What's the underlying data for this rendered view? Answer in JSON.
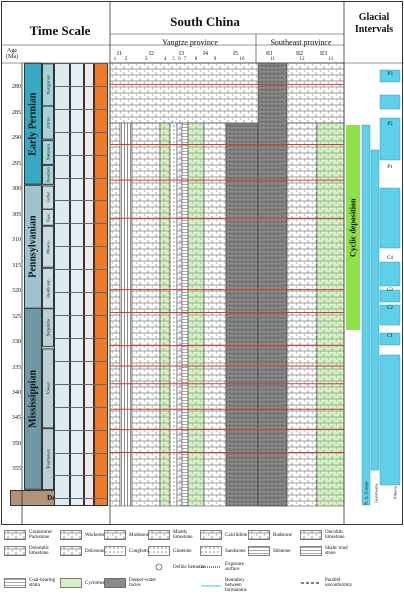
{
  "headers": {
    "time_scale": "Time Scale",
    "south_china": "South China",
    "glacial_intervals": "Glacial Intervals",
    "age": "Age\n(Ma)",
    "yangtze": "Yangtze province",
    "southeast": "Southeast province"
  },
  "region_codes": [
    "I1",
    "I2",
    "I3",
    "I4",
    "I5",
    "II1",
    "II2",
    "II3"
  ],
  "column_numbers": [
    "1",
    "2",
    "3",
    "4",
    "5",
    "6",
    "7",
    "8",
    "9",
    "10",
    "11",
    "12",
    "13"
  ],
  "periods": [
    {
      "label": "Early Permian",
      "color": "#37a9c4"
    },
    {
      "label": "Pennsylvanian",
      "color": "#9fc4cf"
    },
    {
      "label": "Mississippian",
      "color": "#6e98a3"
    },
    {
      "label": "Dev",
      "color": "#b0937a"
    }
  ],
  "stages_eu": [
    "Kungurian",
    "Artins.",
    "Sakmara",
    "Asselian",
    "Gzhel",
    "Kasi.",
    "Mosco.",
    "Bashkiran",
    "Serpukho",
    "Visean",
    "Tournasian"
  ],
  "age_ticks": [
    "280",
    "285",
    "290",
    "295",
    "300",
    "305",
    "310",
    "315",
    "320",
    "325",
    "330",
    "335",
    "340",
    "345",
    "350",
    "355",
    "360"
  ],
  "gi_labels": [
    "Cyclic deposition"
  ],
  "glacial_labels": [
    "P3",
    "P2",
    "P1",
    "C4",
    "C3",
    "C2",
    "C1"
  ],
  "glacial_col_labels": [
    "N. A. Europe",
    "Gondwana",
    "Siberia"
  ],
  "legend": [
    {
      "label": "Grainstone/ Packstone",
      "pattern": "grain"
    },
    {
      "label": "Wackestone",
      "pattern": "wacke"
    },
    {
      "label": "Mudstone",
      "pattern": "mud"
    },
    {
      "label": "Muddy limestone",
      "pattern": "muddy"
    },
    {
      "label": "Calcilithite",
      "pattern": "calci"
    },
    {
      "label": "Rudstone",
      "pattern": "rud"
    },
    {
      "label": "Oncolitic limestone",
      "pattern": "onco"
    },
    {
      "label": "Dolomitic limestone",
      "pattern": "dolo_lime"
    },
    {
      "label": "Dolostone",
      "pattern": "dolo"
    },
    {
      "label": "Conglomerate",
      "pattern": "cong"
    },
    {
      "label": "Glutenite",
      "pattern": "glut"
    },
    {
      "label": "Sandstone",
      "pattern": "sand"
    },
    {
      "label": "Siltstone",
      "pattern": "silt"
    },
    {
      "label": "Shale/ mud stone",
      "pattern": "shale"
    },
    {
      "label": "Oolitic hematite",
      "pattern": "ool"
    },
    {
      "label": "Exposure surface",
      "pattern": "exposure"
    },
    {
      "label": "Coal-bearing strata",
      "pattern": "coal"
    },
    {
      "label": "Cyclothems",
      "pattern": "cyclo"
    },
    {
      "label": "Deeper-water facies",
      "pattern": "deep"
    },
    {
      "label": "Boundary between formations",
      "pattern": "boundary"
    },
    {
      "label": "Parallel unconformity",
      "pattern": "unconf"
    }
  ],
  "colors": {
    "green_cycle": "#8ee04a",
    "cyan_glacial": "#5fd0ea",
    "red_line": "#d23a3a",
    "light_green_fill": "#d7efc8"
  }
}
